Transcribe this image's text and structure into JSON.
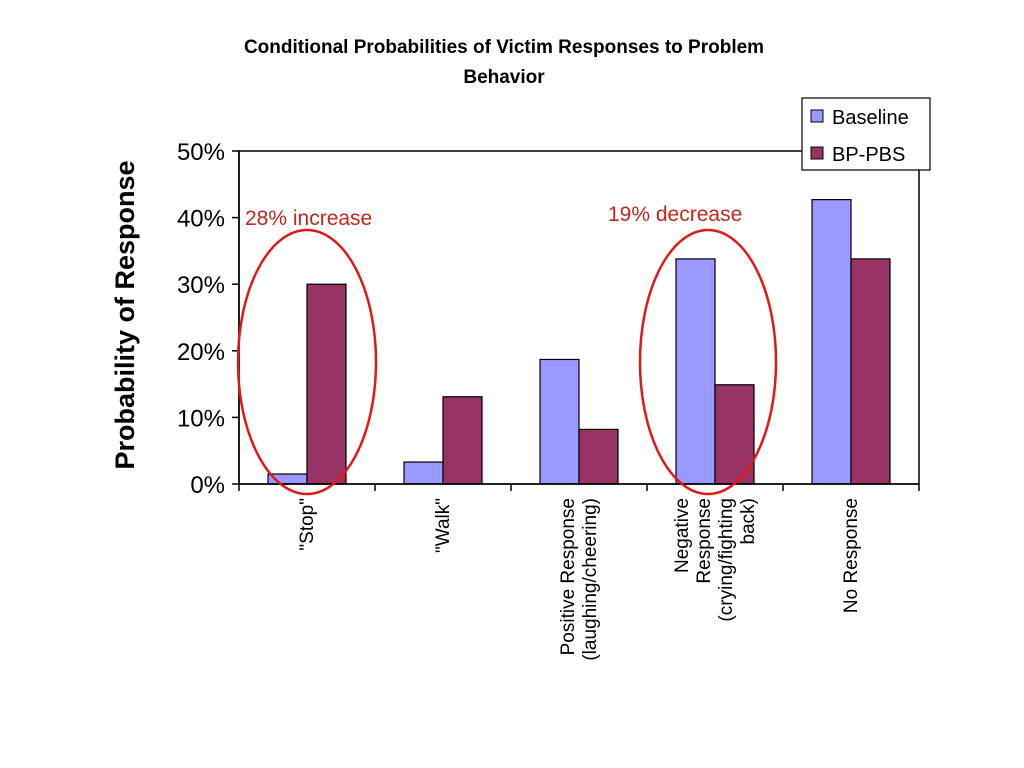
{
  "chart_data": {
    "type": "bar",
    "title": "Conditional Probabilities of Victim Responses to Problem Behavior",
    "title_lines": [
      "Conditional Probabilities of Victim Responses to Problem",
      "Behavior"
    ],
    "xlabel": "",
    "ylabel": "Probability of Response",
    "ylim": [
      0,
      50
    ],
    "y_ticks": [
      "0%",
      "10%",
      "20%",
      "30%",
      "40%",
      "50%"
    ],
    "categories": [
      [
        "\"Stop\""
      ],
      [
        "\"Walk\""
      ],
      [
        "Positive Response",
        "(laughing/cheering)"
      ],
      [
        "Negative",
        "Response",
        "(crying/fighting",
        "back)"
      ],
      [
        "No Response"
      ]
    ],
    "series": [
      {
        "name": "Baseline",
        "color": "#9999ff",
        "values": [
          1.5,
          3.3,
          18.7,
          33.8,
          42.7
        ]
      },
      {
        "name": "BP-PBS",
        "color": "#993366",
        "values": [
          30.0,
          13.1,
          8.2,
          14.9,
          33.8
        ]
      }
    ],
    "legend_position": "top-right",
    "grid": false,
    "annotations": [
      {
        "text": "28% increase",
        "category_index": 0,
        "color": "#c0281e"
      },
      {
        "text": "19% decrease",
        "category_index": 3,
        "color": "#c0281e"
      }
    ]
  }
}
